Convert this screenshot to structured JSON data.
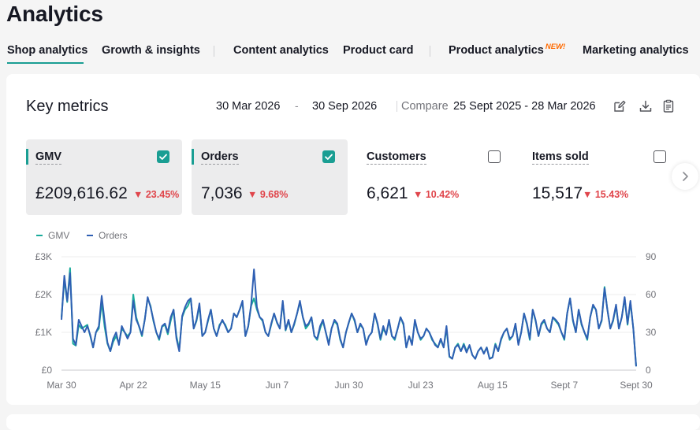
{
  "page": {
    "title": "Analytics"
  },
  "tabs": [
    {
      "label": "Shop analytics",
      "active": true
    },
    {
      "label": "Growth & insights"
    },
    {
      "label": "Content analytics"
    },
    {
      "label": "Product card"
    },
    {
      "label": "Product analytics",
      "badge": "NEW!"
    },
    {
      "label": "Marketing analytics"
    }
  ],
  "key_metrics": {
    "title": "Key metrics",
    "date_start": "30 Mar 2026",
    "date_dash": "-",
    "date_end": "30 Sep 2026",
    "compare_label": "Compare",
    "compare_range": "25 Sept 2025 - 28 Mar 2026",
    "icons": [
      "edit-icon",
      "download-icon",
      "report-icon"
    ]
  },
  "metrics": [
    {
      "label": "GMV",
      "value": "£209,616.62",
      "change": "23.45%",
      "direction": "down",
      "checked": true
    },
    {
      "label": "Orders",
      "value": "7,036",
      "change": "9.68%",
      "direction": "down",
      "checked": true
    },
    {
      "label": "Customers",
      "value": "6,621",
      "change": "10.42%",
      "direction": "down",
      "checked": false
    },
    {
      "label": "Items sold",
      "value": "15,517",
      "change": "15.43%",
      "direction": "down",
      "checked": false
    }
  ],
  "colors": {
    "accent": "#1a9e93",
    "gmv_line": "#1aab9b",
    "orders_line": "#2f5fb3",
    "negative": "#e0454b"
  },
  "chart_data": {
    "type": "line",
    "legend": [
      "GMV",
      "Orders"
    ],
    "x_ticks": [
      "Mar 30",
      "Apr 22",
      "May 15",
      "Jun 7",
      "Jun 30",
      "Jul 23",
      "Aug 15",
      "Sept 7",
      "Sept 30"
    ],
    "y_left_ticks": [
      "£0",
      "£1K",
      "£2K",
      "£3K"
    ],
    "y_right_ticks": [
      "0",
      "30",
      "60",
      "90"
    ],
    "ylim_left": [
      0,
      3000
    ],
    "ylim_right": [
      0,
      90
    ],
    "grid": true,
    "series": [
      {
        "name": "GMV",
        "axis": "left",
        "values": [
          1400,
          2400,
          1800,
          2700,
          700,
          650,
          1200,
          1100,
          1150,
          1200,
          900,
          600,
          1000,
          1100,
          1800,
          1150,
          700,
          500,
          750,
          900,
          700,
          1100,
          1000,
          900,
          1000,
          2000,
          1400,
          1150,
          900,
          1350,
          1900,
          1700,
          1300,
          1000,
          800,
          1150,
          1200,
          950,
          1300,
          1600,
          900,
          550,
          1400,
          1600,
          1700,
          1900,
          1100,
          1300,
          1700,
          900,
          1000,
          1300,
          1600,
          1100,
          900,
          1200,
          1300,
          1200,
          1000,
          1100,
          1500,
          1400,
          1600,
          1800,
          900,
          1150,
          1700,
          1900,
          1600,
          1400,
          1300,
          1000,
          900,
          1200,
          1500,
          1250,
          1100,
          1800,
          1050,
          1300,
          1000,
          1200,
          1500,
          1800,
          1400,
          1100,
          1200,
          1400,
          900,
          800,
          1100,
          1300,
          1000,
          700,
          1100,
          1300,
          1200,
          800,
          600,
          1000,
          1250,
          1500,
          1300,
          1000,
          1200,
          1100,
          700,
          900,
          1000,
          1500,
          1200,
          800,
          1100,
          950,
          1300,
          900,
          800,
          1100,
          1400,
          1200,
          600,
          900,
          700,
          1300,
          1000,
          800,
          900,
          1100,
          1000,
          800,
          700,
          600,
          800,
          600,
          1100,
          350,
          300,
          600,
          700,
          500,
          700,
          500,
          650,
          400,
          300,
          500,
          600,
          450,
          600,
          300,
          350,
          700,
          500,
          800,
          1000,
          1100,
          800,
          900,
          1200,
          700,
          1000,
          1500,
          1200,
          800,
          1600,
          1300,
          900,
          1200,
          1300,
          1100,
          1000,
          1400,
          1300,
          1200,
          1000,
          800,
          1500,
          1900,
          1300,
          1000,
          1600,
          1200,
          1000,
          800,
          1400,
          1700,
          1600,
          1100,
          1300,
          2200,
          1600,
          1100,
          1300,
          1700,
          1100,
          1400,
          1900,
          1200,
          1800,
          1100,
          100
        ],
        "note": ""
      },
      {
        "name": "Orders",
        "axis": "right",
        "values": [
          40,
          75,
          55,
          77,
          25,
          20,
          40,
          35,
          30,
          35,
          28,
          18,
          30,
          35,
          59,
          39,
          22,
          15,
          25,
          30,
          20,
          35,
          30,
          25,
          30,
          55,
          40,
          35,
          28,
          40,
          58,
          50,
          40,
          30,
          25,
          35,
          37,
          30,
          42,
          48,
          25,
          15,
          43,
          50,
          55,
          57,
          33,
          40,
          53,
          27,
          30,
          40,
          48,
          33,
          27,
          35,
          40,
          35,
          30,
          33,
          45,
          42,
          48,
          55,
          27,
          35,
          52,
          80,
          50,
          42,
          40,
          30,
          27,
          37,
          45,
          38,
          33,
          55,
          32,
          40,
          30,
          37,
          45,
          55,
          42,
          35,
          37,
          42,
          27,
          25,
          35,
          40,
          30,
          20,
          33,
          40,
          37,
          25,
          18,
          30,
          38,
          45,
          40,
          30,
          37,
          33,
          20,
          27,
          30,
          45,
          37,
          25,
          35,
          28,
          40,
          27,
          25,
          33,
          42,
          37,
          18,
          27,
          20,
          40,
          30,
          25,
          27,
          33,
          30,
          25,
          20,
          18,
          25,
          18,
          35,
          11,
          9,
          18,
          20,
          15,
          20,
          14,
          20,
          12,
          9,
          15,
          18,
          13,
          18,
          9,
          10,
          20,
          15,
          25,
          30,
          33,
          25,
          27,
          37,
          20,
          30,
          45,
          37,
          25,
          48,
          40,
          27,
          37,
          40,
          33,
          30,
          42,
          40,
          37,
          30,
          25,
          45,
          57,
          40,
          30,
          48,
          37,
          30,
          25,
          42,
          52,
          48,
          33,
          40,
          65,
          48,
          33,
          40,
          52,
          33,
          42,
          58,
          37,
          55,
          33,
          3
        ]
      }
    ]
  }
}
